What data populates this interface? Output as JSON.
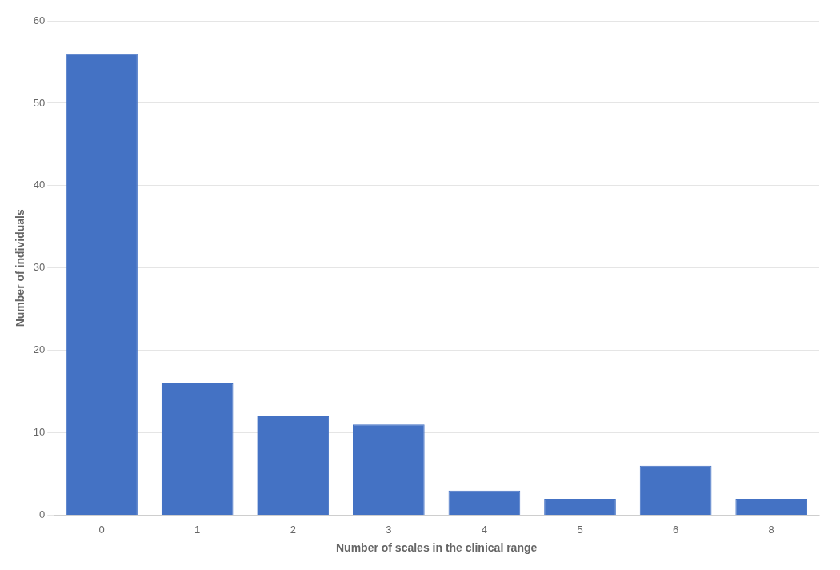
{
  "chart_data": {
    "type": "bar",
    "xlabel": "Number of scales in the clinical range",
    "ylabel": "Number of individuals",
    "categories": [
      "0",
      "1",
      "2",
      "3",
      "4",
      "5",
      "6",
      "8"
    ],
    "values": [
      56,
      16,
      12,
      11,
      3,
      2,
      6,
      2
    ],
    "color": "#4472C4",
    "ylim": [
      0,
      60
    ],
    "yticks": [
      0,
      10,
      20,
      30,
      40,
      50,
      60
    ],
    "grid": true
  }
}
